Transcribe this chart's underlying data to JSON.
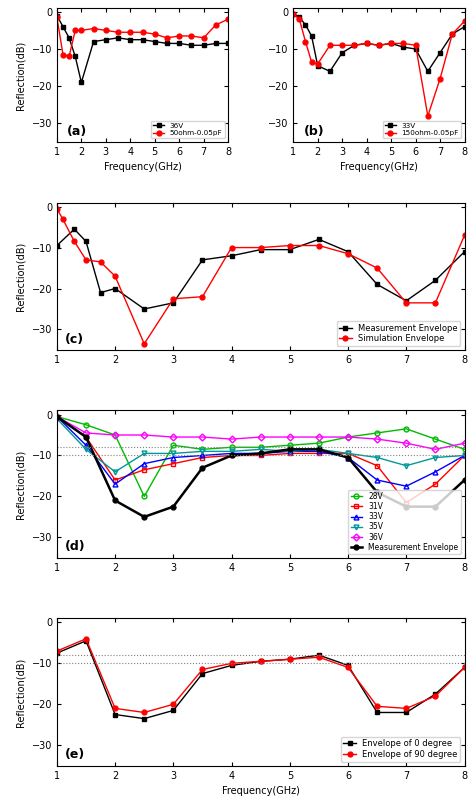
{
  "panel_a": {
    "label": "(a)",
    "freq": [
      1.0,
      1.25,
      1.5,
      1.75,
      2.0,
      2.5,
      3.0,
      3.5,
      4.0,
      4.5,
      5.0,
      5.5,
      6.0,
      6.5,
      7.0,
      7.5,
      8.0
    ],
    "black": [
      -1.0,
      -4.0,
      -7.0,
      -12.0,
      -19.0,
      -8.0,
      -7.5,
      -7.0,
      -7.5,
      -7.5,
      -8.0,
      -8.5,
      -8.5,
      -9.0,
      -9.0,
      -8.5,
      -8.5
    ],
    "red": [
      -1.5,
      -11.5,
      -12.0,
      -5.0,
      -5.0,
      -4.5,
      -5.0,
      -5.5,
      -5.5,
      -5.5,
      -6.0,
      -7.0,
      -6.5,
      -6.5,
      -7.0,
      -3.5,
      -2.0
    ],
    "black_label": "36V",
    "red_label": "50ohm-0.05pF"
  },
  "panel_b": {
    "label": "(b)",
    "freq": [
      1.0,
      1.25,
      1.5,
      1.75,
      2.0,
      2.5,
      3.0,
      3.5,
      4.0,
      4.5,
      5.0,
      5.5,
      6.0,
      6.5,
      7.0,
      7.5,
      8.0
    ],
    "black": [
      -0.5,
      -1.5,
      -3.5,
      -6.5,
      -14.5,
      -16.0,
      -11.0,
      -9.0,
      -8.5,
      -9.0,
      -8.5,
      -9.5,
      -10.0,
      -16.0,
      -11.0,
      -6.0,
      -4.0
    ],
    "red": [
      -0.5,
      -2.0,
      -8.0,
      -13.5,
      -14.0,
      -9.0,
      -9.0,
      -9.0,
      -8.5,
      -9.0,
      -8.5,
      -8.5,
      -9.0,
      -28.0,
      -18.0,
      -6.0,
      -2.5
    ],
    "black_label": "33V",
    "red_label": "150ohm-0.05pF"
  },
  "panel_c": {
    "label": "(c)",
    "freq_black": [
      1.0,
      1.3,
      1.5,
      1.75,
      2.0,
      2.5,
      3.0,
      3.5,
      4.0,
      4.5,
      5.0,
      5.5,
      6.0,
      6.5,
      7.0,
      7.5,
      8.0
    ],
    "black": [
      -9.5,
      -5.5,
      -8.5,
      -21.0,
      -20.0,
      -25.0,
      -23.5,
      -13.0,
      -12.0,
      -10.5,
      -10.5,
      -8.0,
      -11.0,
      -19.0,
      -23.0,
      -18.0,
      -11.0
    ],
    "freq_red": [
      1.0,
      1.1,
      1.3,
      1.5,
      1.75,
      2.0,
      2.5,
      3.0,
      3.5,
      4.0,
      4.5,
      5.0,
      5.5,
      6.0,
      6.5,
      7.0,
      7.5,
      8.0
    ],
    "red": [
      -0.5,
      -3.0,
      -8.5,
      -13.0,
      -13.5,
      -17.0,
      -33.5,
      -22.5,
      -22.0,
      -10.0,
      -10.0,
      -9.5,
      -9.5,
      -11.5,
      -15.0,
      -23.5,
      -23.5,
      -7.0
    ],
    "black_label": "Measurement Envelope",
    "red_label": "Simulation Envelope"
  },
  "panel_d": {
    "label": "(d)",
    "freq": [
      1.0,
      1.5,
      2.0,
      2.5,
      3.0,
      3.5,
      4.0,
      4.5,
      5.0,
      5.5,
      6.0,
      6.5,
      7.0,
      7.5,
      8.0
    ],
    "v28": [
      -0.5,
      -2.5,
      -5.0,
      -20.0,
      -7.5,
      -8.5,
      -8.0,
      -8.0,
      -7.5,
      -7.0,
      -5.5,
      -4.5,
      -3.5,
      -6.0,
      -8.5
    ],
    "v31": [
      -0.5,
      -5.5,
      -16.0,
      -13.5,
      -12.0,
      -10.5,
      -10.0,
      -10.0,
      -9.5,
      -9.5,
      -9.5,
      -12.5,
      -21.5,
      -17.0,
      -10.0
    ],
    "v33": [
      -0.5,
      -7.5,
      -17.0,
      -12.0,
      -10.5,
      -10.0,
      -9.5,
      -9.5,
      -9.0,
      -9.0,
      -10.5,
      -16.0,
      -17.5,
      -14.0,
      -10.0
    ],
    "v35": [
      -1.0,
      -8.5,
      -14.0,
      -9.5,
      -9.5,
      -9.0,
      -9.0,
      -8.5,
      -9.0,
      -8.5,
      -9.5,
      -10.5,
      -12.5,
      -10.5,
      -10.0
    ],
    "v36": [
      -0.5,
      -4.5,
      -5.0,
      -5.0,
      -5.5,
      -5.5,
      -6.0,
      -5.5,
      -5.5,
      -5.5,
      -5.5,
      -6.0,
      -7.0,
      -8.5,
      -7.0
    ],
    "meas": [
      -0.5,
      -5.5,
      -21.0,
      -25.0,
      -22.5,
      -13.0,
      -10.0,
      -9.5,
      -8.5,
      -8.5,
      -10.5,
      -19.0,
      -22.5,
      -22.5,
      -16.0
    ],
    "hline1": -8,
    "hline2": -10,
    "labels": [
      "28V",
      "31V",
      "33V",
      "35V",
      "36V",
      "Measurement Envelope"
    ],
    "colors": [
      "#00bb00",
      "#ff0000",
      "#0000ff",
      "#009999",
      "#ff00ff",
      "#000000"
    ],
    "markers": [
      "o",
      "s",
      "^",
      "v",
      "D",
      "o"
    ]
  },
  "panel_e": {
    "label": "(e)",
    "freq": [
      1.0,
      1.5,
      2.0,
      2.5,
      3.0,
      3.5,
      4.0,
      4.5,
      5.0,
      5.5,
      6.0,
      6.5,
      7.0,
      7.5,
      8.0
    ],
    "deg0": [
      -7.5,
      -4.5,
      -22.5,
      -23.5,
      -21.5,
      -12.5,
      -10.5,
      -9.5,
      -9.0,
      -8.0,
      -10.5,
      -22.0,
      -22.0,
      -17.5,
      -11.0
    ],
    "deg90": [
      -7.0,
      -4.0,
      -21.0,
      -22.0,
      -20.0,
      -11.5,
      -10.0,
      -9.5,
      -9.0,
      -8.5,
      -11.0,
      -20.5,
      -21.0,
      -18.0,
      -11.0
    ],
    "hline1": -8,
    "hline2": -10,
    "label0": "Envelope of 0 degree",
    "label90": "Envelope of 90 degree"
  },
  "xlim": [
    1,
    8
  ],
  "ylim_ab": [
    -35,
    1
  ],
  "ylim_cde": [
    -35,
    1
  ],
  "yticks_ab": [
    0,
    -10,
    -20,
    -30
  ],
  "yticks_cde": [
    0,
    -10,
    -20,
    -30
  ],
  "xticks": [
    1,
    2,
    3,
    4,
    5,
    6,
    7,
    8
  ],
  "xlabel": "Frequency(GHz)",
  "ylabel": "Reflection(dB)"
}
